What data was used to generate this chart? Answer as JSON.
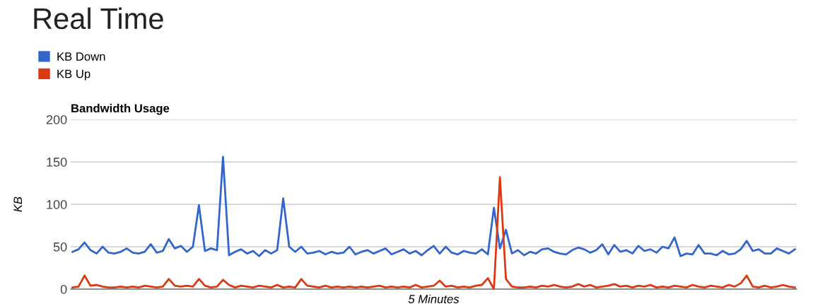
{
  "chart_data": {
    "type": "line",
    "title": "Real Time",
    "subtitle": "Bandwidth Usage",
    "xlabel": "5 Minutes",
    "ylabel": "KB",
    "categories": [
      null,
      null,
      null,
      null,
      null,
      null,
      null,
      null,
      null,
      null,
      null,
      null,
      null,
      null,
      null,
      null,
      null,
      null,
      null,
      null,
      null,
      null,
      null,
      null,
      null,
      null,
      null,
      null,
      null,
      null,
      null,
      null,
      null,
      null,
      null,
      null,
      null,
      null,
      null,
      null,
      null,
      null,
      null,
      null,
      null,
      null,
      null,
      null,
      null,
      null,
      null,
      null,
      null,
      null,
      null,
      null,
      null,
      null,
      null,
      null,
      null,
      null,
      null,
      null,
      null,
      null,
      null,
      null,
      null,
      null,
      null,
      null,
      null,
      null,
      null,
      null,
      null,
      null,
      null,
      null,
      null,
      null,
      null,
      null,
      null,
      null,
      null,
      null,
      null,
      null,
      null,
      null,
      null,
      null,
      null,
      null,
      null,
      null,
      null,
      null,
      null,
      null,
      null,
      null,
      null,
      null,
      null,
      null,
      null,
      null,
      null,
      null,
      null,
      null,
      null,
      null,
      null,
      null,
      null,
      null,
      null
    ],
    "series": [
      {
        "name": "KB Down",
        "color": "#3366cc",
        "values": [
          44,
          47,
          55,
          46,
          42,
          50,
          43,
          42,
          44,
          48,
          43,
          42,
          44,
          53,
          43,
          45,
          59,
          48,
          51,
          44,
          50,
          99,
          45,
          48,
          46,
          156,
          40,
          44,
          47,
          42,
          45,
          39,
          46,
          42,
          46,
          107,
          50,
          44,
          50,
          42,
          43,
          45,
          41,
          44,
          42,
          43,
          50,
          41,
          44,
          46,
          42,
          45,
          48,
          41,
          44,
          47,
          42,
          45,
          40,
          46,
          51,
          42,
          50,
          43,
          41,
          45,
          43,
          42,
          47,
          41,
          96,
          48,
          70,
          42,
          46,
          40,
          44,
          42,
          47,
          48,
          44,
          42,
          41,
          46,
          49,
          47,
          43,
          46,
          53,
          41,
          52,
          44,
          46,
          42,
          51,
          45,
          47,
          43,
          50,
          48,
          61,
          39,
          42,
          41,
          52,
          42,
          42,
          40,
          45,
          41,
          42,
          47,
          57,
          45,
          47,
          42,
          42,
          48,
          45,
          42,
          47
        ]
      },
      {
        "name": "KB Up",
        "color": "#dc3912",
        "values": [
          2,
          3,
          16,
          4,
          5,
          3,
          2,
          2,
          3,
          2,
          3,
          2,
          4,
          3,
          2,
          3,
          12,
          4,
          3,
          4,
          3,
          12,
          4,
          2,
          3,
          11,
          5,
          2,
          4,
          3,
          2,
          4,
          3,
          2,
          5,
          2,
          3,
          2,
          12,
          4,
          3,
          2,
          4,
          2,
          3,
          2,
          3,
          2,
          3,
          2,
          3,
          4,
          2,
          3,
          2,
          3,
          2,
          5,
          2,
          3,
          4,
          10,
          3,
          4,
          2,
          3,
          2,
          4,
          5,
          13,
          0,
          132,
          12,
          3,
          2,
          2,
          3,
          2,
          4,
          3,
          5,
          3,
          2,
          3,
          6,
          3,
          5,
          2,
          3,
          4,
          6,
          3,
          4,
          2,
          4,
          3,
          5,
          2,
          3,
          2,
          4,
          3,
          2,
          5,
          3,
          2,
          4,
          3,
          2,
          5,
          3,
          7,
          16,
          3,
          2,
          4,
          2,
          3,
          5,
          3,
          2
        ]
      }
    ],
    "ylim": [
      0,
      200
    ],
    "yticks": [
      0,
      50,
      100,
      150,
      200
    ],
    "grid": "y",
    "legend": "top left",
    "line_style": "solid",
    "marker": "none"
  }
}
